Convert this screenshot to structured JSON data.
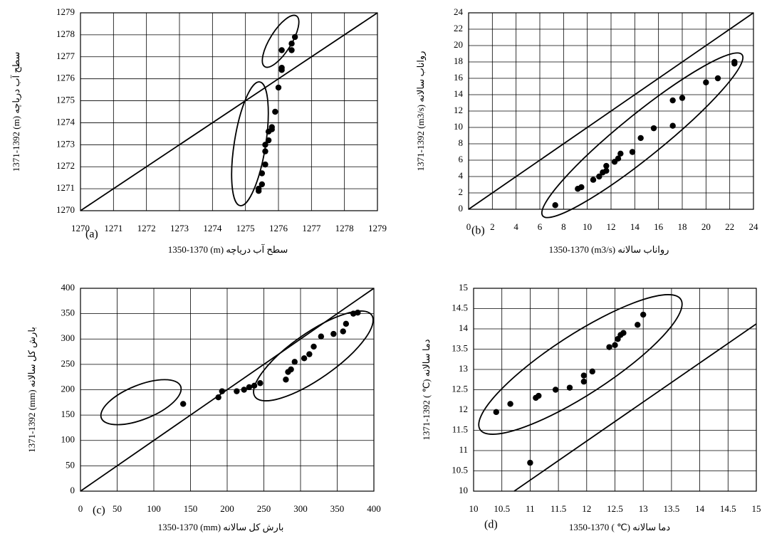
{
  "chart_data": [
    {
      "type": "scatter",
      "label": "(a)",
      "x_label": "1350-1370 (m) سطح آب دریاچه",
      "y_label": "1371-1392 (m) سطح آب دریاچه",
      "x": [
        1276.5,
        1276.4,
        1276.4,
        1276.1,
        1276.1,
        1276.1,
        1276.0,
        1275.9,
        1275.8,
        1275.8,
        1275.7,
        1275.7,
        1275.6,
        1275.6,
        1275.6,
        1275.5,
        1275.5,
        1275.4,
        1275.4
      ],
      "values": [
        1277.9,
        1277.6,
        1277.3,
        1277.3,
        1276.5,
        1276.4,
        1275.6,
        1274.5,
        1273.8,
        1273.7,
        1273.6,
        1273.2,
        1273.0,
        1272.7,
        1272.1,
        1271.7,
        1271.2,
        1271.0,
        1270.9
      ],
      "color": "#000000",
      "xlim": [
        1270,
        1279
      ],
      "xticks": [
        1270,
        1271,
        1272,
        1273,
        1274,
        1275,
        1276,
        1277,
        1278,
        1279
      ],
      "ylim": [
        1270,
        1279
      ],
      "yticks": [
        1270,
        1271,
        1272,
        1273,
        1274,
        1275,
        1276,
        1277,
        1278,
        1279
      ],
      "grid": true
    },
    {
      "type": "scatter",
      "label": "(b)",
      "x_label": "1350-1370 (m3/s) رواناب سالانه",
      "y_label": "1371-1392 (m3/s) رواناب سالانه",
      "x": [
        7.3,
        9.2,
        9.5,
        10.5,
        11,
        11.3,
        11.6,
        11.6,
        12.3,
        12.6,
        12.8,
        13.8,
        14.5,
        15.6,
        17.2,
        17.2,
        18,
        20,
        21,
        22.4,
        22.4
      ],
      "values": [
        0.5,
        2.5,
        2.7,
        3.6,
        4,
        4.5,
        4.7,
        5.3,
        5.8,
        6.2,
        6.8,
        7,
        8.7,
        9.9,
        10.2,
        13.3,
        13.6,
        15.5,
        16,
        17.8,
        18
      ],
      "color": "#000000",
      "xlim": [
        0,
        24
      ],
      "xticks": [
        0,
        2,
        4,
        6,
        8,
        10,
        12,
        14,
        16,
        18,
        20,
        22,
        24
      ],
      "ylim": [
        0,
        24
      ],
      "yticks": [
        0,
        2,
        4,
        6,
        8,
        10,
        12,
        14,
        16,
        18,
        20,
        22,
        24
      ],
      "grid": true
    },
    {
      "type": "scatter",
      "label": "(c)",
      "x_label": "1350-1370 (mm) بارش کل سالانه",
      "y_label": "1371-1392 (mm) بارش کل سالانه",
      "x": [
        140,
        188,
        193,
        213,
        223,
        230,
        237,
        245,
        280,
        283,
        287,
        292,
        305,
        312,
        318,
        328,
        345,
        358,
        362,
        372,
        378
      ],
      "values": [
        172,
        185,
        197,
        197,
        200,
        205,
        208,
        213,
        220,
        235,
        240,
        255,
        262,
        270,
        285,
        305,
        310,
        315,
        330,
        350,
        352
      ],
      "color": "#000000",
      "xlim": [
        0,
        400
      ],
      "xticks": [
        0,
        50,
        100,
        150,
        200,
        250,
        300,
        350,
        400
      ],
      "ylim": [
        0,
        400
      ],
      "yticks": [
        0,
        50,
        100,
        150,
        200,
        250,
        300,
        350,
        400
      ],
      "grid": true
    },
    {
      "type": "scatter",
      "label": "(d)",
      "x_label": "1350-1370 ( ℃) دما سالانه",
      "y_label": "1371-1392 ( ℃) دما سالانه",
      "x": [
        10.4,
        10.65,
        11,
        11.1,
        11.15,
        11.45,
        11.7,
        11.95,
        11.95,
        12.1,
        12.4,
        12.5,
        12.55,
        12.6,
        12.65,
        12.9,
        13
      ],
      "values": [
        11.95,
        12.15,
        10.7,
        12.3,
        12.35,
        12.5,
        12.55,
        12.7,
        12.85,
        12.95,
        13.55,
        13.6,
        13.75,
        13.85,
        13.9,
        14.1,
        14.35
      ],
      "color": "#000000",
      "xlim": [
        10,
        15
      ],
      "xticks": [
        10,
        10.5,
        11,
        11.5,
        12,
        12.5,
        13,
        13.5,
        14,
        14.5,
        15
      ],
      "ylim": [
        10,
        15
      ],
      "yticks": [
        10,
        10.5,
        11,
        11.5,
        12,
        12.5,
        13,
        13.5,
        14,
        14.5,
        15
      ],
      "grid": true
    }
  ]
}
